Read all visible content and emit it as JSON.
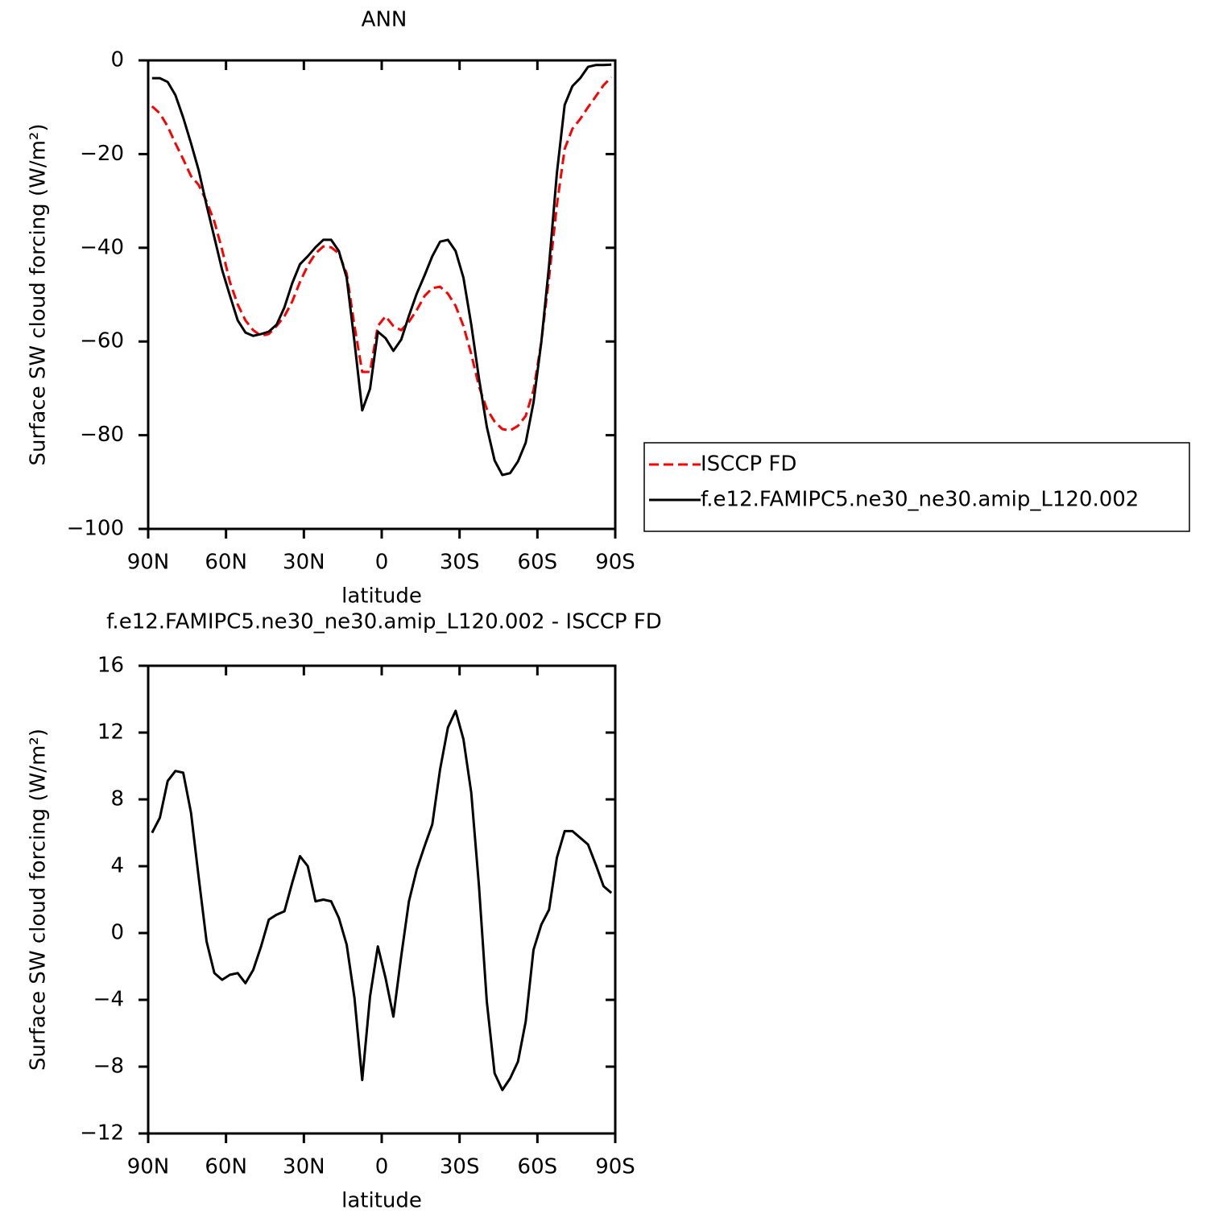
{
  "chart_data": [
    {
      "type": "line",
      "title": "ANN",
      "xlabel": "latitude",
      "ylabel": "Surface SW cloud forcing (W/m²)",
      "x": [
        88.5,
        85.5,
        82.5,
        79.5,
        76.5,
        73.5,
        70.5,
        67.5,
        64.5,
        61.5,
        58.5,
        55.5,
        52.5,
        49.5,
        46.5,
        43.5,
        40.5,
        37.5,
        34.5,
        31.5,
        28.5,
        25.5,
        22.5,
        19.5,
        16.5,
        13.5,
        10.5,
        7.5,
        4.5,
        1.5,
        -1.5,
        -4.5,
        -7.5,
        -10.5,
        -13.5,
        -16.5,
        -19.5,
        -22.5,
        -25.5,
        -28.5,
        -31.5,
        -34.5,
        -37.5,
        -40.5,
        -43.5,
        -46.5,
        -49.5,
        -52.5,
        -55.5,
        -58.5,
        -61.5,
        -64.5,
        -67.5,
        -70.5,
        -73.5,
        -76.5,
        -79.5,
        -82.5,
        -85.5,
        -88.5
      ],
      "series": [
        {
          "name": "ISCCP FD",
          "color": "#ff0000",
          "dash": "dashed",
          "values": [
            -9.8,
            -11.3,
            -14.1,
            -17.7,
            -21.1,
            -24.7,
            -26.6,
            -30.1,
            -34.4,
            -40.4,
            -47.3,
            -52.1,
            -55.5,
            -57.6,
            -58.8,
            -58.4,
            -56.7,
            -54.6,
            -51.5,
            -47.3,
            -43.8,
            -41.2,
            -39.7,
            -39.9,
            -41.2,
            -45.5,
            -56.7,
            -66.5,
            -66.5,
            -56.7,
            -54.6,
            -56.7,
            -57.6,
            -55.8,
            -53.3,
            -50.3,
            -48.6,
            -48.3,
            -49.8,
            -52.4,
            -56.7,
            -62.7,
            -69.6,
            -74.4,
            -77.1,
            -78.7,
            -79.0,
            -78.0,
            -75.9,
            -70.4,
            -60.1,
            -46.4,
            -30.9,
            -18.9,
            -14.6,
            -12.5,
            -10.0,
            -7.7,
            -5.3,
            -3.6
          ]
        },
        {
          "name": "f.e12.FAMIPC5.ne30_ne30.amip_L120.002",
          "color": "#000000",
          "dash": "solid",
          "values": [
            -3.8,
            -3.8,
            -4.6,
            -7.4,
            -12.2,
            -17.7,
            -23.5,
            -30.9,
            -37.8,
            -44.7,
            -50.2,
            -55.5,
            -58.1,
            -58.8,
            -58.4,
            -57.9,
            -56.4,
            -52.7,
            -47.6,
            -43.5,
            -41.8,
            -39.9,
            -38.3,
            -38.3,
            -40.7,
            -46.4,
            -60.1,
            -74.7,
            -70.1,
            -57.9,
            -59.3,
            -62.0,
            -59.6,
            -54.5,
            -49.8,
            -45.9,
            -41.8,
            -38.7,
            -38.3,
            -40.7,
            -46.4,
            -56.4,
            -67.9,
            -78.2,
            -85.4,
            -88.5,
            -88.1,
            -85.6,
            -81.6,
            -73.0,
            -60.1,
            -43.8,
            -24.1,
            -9.5,
            -5.5,
            -3.8,
            -1.4,
            -1.0,
            -1.0,
            -0.9
          ]
        }
      ],
      "xlim": [
        90,
        -90
      ],
      "xticks": [
        {
          "value": 90,
          "label": "90N"
        },
        {
          "value": 60,
          "label": "60N"
        },
        {
          "value": 30,
          "label": "30N"
        },
        0,
        {
          "value": -30,
          "label": "30S"
        },
        {
          "value": -60,
          "label": "60S"
        },
        {
          "value": -90,
          "label": "90S"
        }
      ],
      "ylim": [
        -100,
        0
      ],
      "yticks": [
        0,
        {
          "value": -20,
          "label": "−20"
        },
        {
          "value": -40,
          "label": "−40"
        },
        {
          "value": -60,
          "label": "−60"
        },
        {
          "value": -80,
          "label": "−80"
        },
        {
          "value": -100,
          "label": "−100"
        }
      ],
      "legend": "right"
    },
    {
      "type": "line",
      "title": "f.e12.FAMIPC5.ne30_ne30.amip_L120.002 - ISCCP FD",
      "xlabel": "latitude",
      "ylabel": "Surface SW cloud forcing (W/m²)",
      "x": [
        88.5,
        85.5,
        82.5,
        79.5,
        76.5,
        73.5,
        70.5,
        67.5,
        64.5,
        61.5,
        58.5,
        55.5,
        52.5,
        49.5,
        46.5,
        43.5,
        40.5,
        37.5,
        34.5,
        31.5,
        28.5,
        25.5,
        22.5,
        19.5,
        16.5,
        13.5,
        10.5,
        7.5,
        4.5,
        1.5,
        -1.5,
        -4.5,
        -7.5,
        -10.5,
        -13.5,
        -16.5,
        -19.5,
        -22.5,
        -25.5,
        -28.5,
        -31.5,
        -34.5,
        -37.5,
        -40.5,
        -43.5,
        -46.5,
        -49.5,
        -52.5,
        -55.5,
        -58.5,
        -61.5,
        -64.5,
        -67.5,
        -70.5,
        -73.5,
        -76.5,
        -79.5,
        -82.5,
        -85.5,
        -88.5
      ],
      "series": [
        {
          "color": "#000000",
          "dash": "solid",
          "values": [
            6.0,
            6.9,
            9.1,
            9.7,
            9.6,
            7.2,
            3.3,
            -0.5,
            -2.4,
            -2.8,
            -2.5,
            -2.4,
            -3.0,
            -2.2,
            -0.8,
            0.8,
            1.1,
            1.3,
            3.0,
            4.6,
            4.0,
            1.9,
            2.0,
            1.9,
            0.9,
            -0.7,
            -3.9,
            -8.8,
            -3.8,
            -0.8,
            -2.7,
            -5.0,
            -1.4,
            1.9,
            3.8,
            5.2,
            6.5,
            9.8,
            12.3,
            13.3,
            11.6,
            8.4,
            2.8,
            -4.1,
            -8.4,
            -9.4,
            -8.7,
            -7.7,
            -5.3,
            -1.0,
            0.5,
            1.4,
            4.5,
            6.1,
            6.1,
            5.7,
            5.3,
            4.1,
            2.8,
            2.4
          ]
        }
      ],
      "xlim": [
        90,
        -90
      ],
      "xticks": [
        {
          "value": 90,
          "label": "90N"
        },
        {
          "value": 60,
          "label": "60N"
        },
        {
          "value": 30,
          "label": "30N"
        },
        0,
        {
          "value": -30,
          "label": "30S"
        },
        {
          "value": -60,
          "label": "60S"
        },
        {
          "value": -90,
          "label": "90S"
        }
      ],
      "ylim": [
        -12,
        16
      ],
      "yticks": [
        16,
        12,
        8,
        4,
        0,
        {
          "value": -4,
          "label": "−4"
        },
        {
          "value": -8,
          "label": "−8"
        },
        {
          "value": -12,
          "label": "−12"
        }
      ]
    }
  ]
}
